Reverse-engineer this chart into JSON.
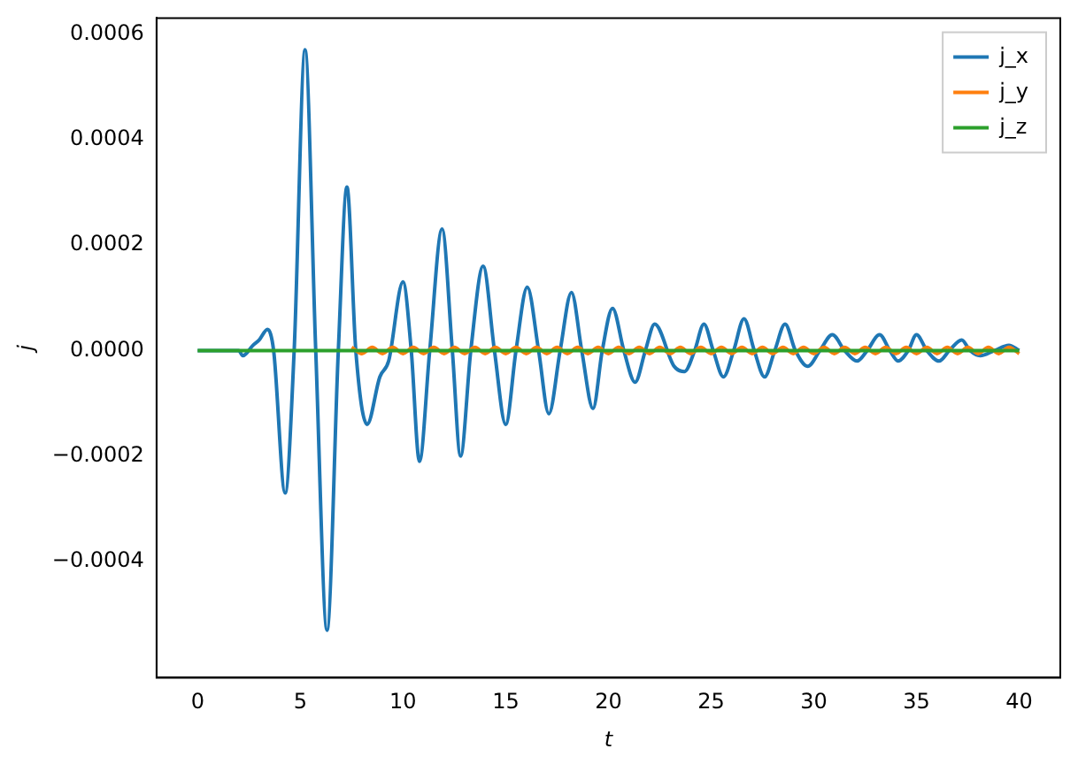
{
  "chart_data": {
    "type": "line",
    "xlabel": "t",
    "ylabel": "j",
    "xlim": [
      -2,
      42
    ],
    "ylim": [
      -0.00062,
      0.00063
    ],
    "xticks": [
      0,
      5,
      10,
      15,
      20,
      25,
      30,
      35,
      40
    ],
    "yticks": [
      {
        "value": -0.0004,
        "label": "−0.0004"
      },
      {
        "value": -0.0002,
        "label": "−0.0002"
      },
      {
        "value": 0,
        "label": "0.0000"
      },
      {
        "value": 0.0002,
        "label": "0.0002"
      },
      {
        "value": 0.0004,
        "label": "0.0004"
      },
      {
        "value": 0.0006,
        "label": "0.0006"
      }
    ],
    "grid": false,
    "legend": "top right",
    "marker": "none",
    "line_style": "solid",
    "series": [
      {
        "name": "j_x",
        "color": "#1f77b4",
        "x": [
          0,
          2,
          2.2,
          2.7,
          3.0,
          3.4,
          3.7,
          4.26,
          4.7,
          5.23,
          5.75,
          6.3,
          6.85,
          7.27,
          7.7,
          8.25,
          8.87,
          9.3,
          10.0,
          10.4,
          10.8,
          11.3,
          11.9,
          12.4,
          12.8,
          13.3,
          13.9,
          14.45,
          15.0,
          15.5,
          16.05,
          16.6,
          17.1,
          17.65,
          18.2,
          18.7,
          19.25,
          19.7,
          20.2,
          20.75,
          21.3,
          21.8,
          22.25,
          23.2,
          23.7,
          24.2,
          24.65,
          25.1,
          25.6,
          26.1,
          26.6,
          27.1,
          27.6,
          28.1,
          28.6,
          29.1,
          29.7,
          30.3,
          30.9,
          31.5,
          32.1,
          32.6,
          33.2,
          33.7,
          34.1,
          34.6,
          35.0,
          35.5,
          36.1,
          36.6,
          37.2,
          37.6,
          38.1,
          38.8,
          39.5,
          40
        ],
        "values": [
          0,
          0,
          -1e-05,
          1e-05,
          2e-05,
          4e-05,
          0,
          -0.00027,
          0,
          0.00057,
          0,
          -0.00053,
          0,
          0.00031,
          0,
          -0.00014,
          -5e-05,
          -2e-05,
          0.00013,
          0,
          -0.00021,
          0,
          0.00023,
          0,
          -0.0002,
          0,
          0.00016,
          0,
          -0.00014,
          0,
          0.00012,
          0,
          -0.00012,
          0,
          0.00011,
          0,
          -0.00011,
          0,
          8e-05,
          0,
          -6e-05,
          0,
          5e-05,
          -3e-05,
          -4e-05,
          0,
          5e-05,
          0,
          -5e-05,
          0,
          6e-05,
          0,
          -5e-05,
          0,
          5e-05,
          0,
          -3e-05,
          0,
          3e-05,
          0,
          -2e-05,
          0,
          3e-05,
          0,
          -2e-05,
          0,
          3e-05,
          0,
          -2e-05,
          0,
          2e-05,
          0,
          -1e-05,
          0,
          1e-05,
          0
        ]
      },
      {
        "name": "j_y",
        "color": "#ff7f0e",
        "x": [
          7.5,
          8,
          8.5,
          9,
          9.5,
          10,
          10.5,
          11,
          11.5,
          12,
          12.5,
          13,
          13.5,
          14,
          14.5,
          15,
          15.5,
          16,
          16.5,
          17,
          17.5,
          18,
          18.5,
          19,
          19.5,
          20,
          20.5,
          21,
          21.5,
          22,
          22.5,
          23,
          23.5,
          24,
          24.5,
          25,
          25.5,
          26,
          26.5,
          27,
          27.5,
          28,
          28.5,
          29,
          29.5,
          30,
          30.5,
          31,
          31.5,
          32,
          32.5,
          33,
          33.5,
          34,
          34.5,
          35,
          35.5,
          36,
          36.5,
          37,
          37.5,
          38,
          38.5,
          39,
          39.5,
          40
        ],
        "values": [
          6e-06,
          -6e-06,
          6e-06,
          -6e-06,
          6e-06,
          -6e-06,
          6e-06,
          -6e-06,
          6e-06,
          -6e-06,
          6e-06,
          -6e-06,
          6e-06,
          -6e-06,
          6e-06,
          -6e-06,
          6e-06,
          -6e-06,
          6e-06,
          -6e-06,
          6e-06,
          -6e-06,
          6e-06,
          -6e-06,
          6e-06,
          -6e-06,
          6e-06,
          -6e-06,
          6e-06,
          -6e-06,
          6e-06,
          -6e-06,
          6e-06,
          -6e-06,
          6e-06,
          -6e-06,
          6e-06,
          -6e-06,
          6e-06,
          -6e-06,
          6e-06,
          -6e-06,
          6e-06,
          -6e-06,
          6e-06,
          -6e-06,
          6e-06,
          -6e-06,
          6e-06,
          -6e-06,
          6e-06,
          -6e-06,
          6e-06,
          -6e-06,
          6e-06,
          -6e-06,
          6e-06,
          -6e-06,
          6e-06,
          -6e-06,
          6e-06,
          -6e-06,
          6e-06,
          -6e-06,
          6e-06,
          -6e-06
        ]
      },
      {
        "name": "j_z",
        "color": "#2ca02c",
        "x": [
          0,
          10,
          20,
          30,
          40
        ],
        "values": [
          0,
          0,
          0,
          0,
          0
        ]
      }
    ]
  }
}
